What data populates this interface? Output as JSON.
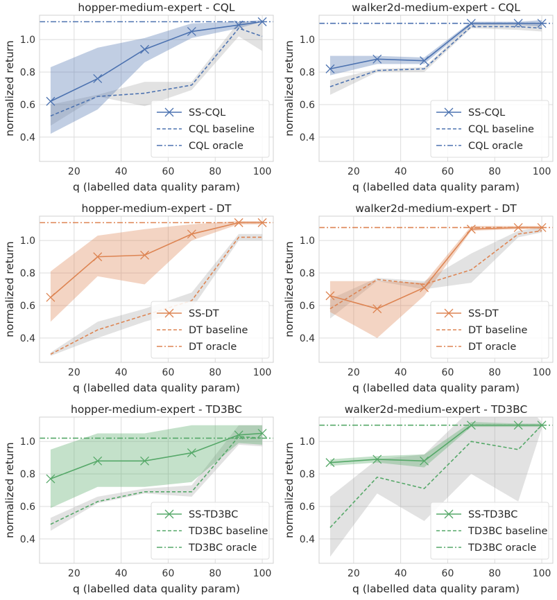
{
  "chart_data": [
    {
      "type": "line",
      "title": "hopper-medium-expert - CQL",
      "xlabel": "q (labelled data quality param)",
      "ylabel": "normalized return",
      "xlim": [
        5.3,
        104.7
      ],
      "ylim": [
        0.25,
        1.15
      ],
      "x": [
        10,
        30,
        50,
        70,
        90,
        100
      ],
      "xticks": [
        20,
        40,
        60,
        80,
        100
      ],
      "yticks": [
        0.4,
        0.6,
        0.8,
        1.0
      ],
      "grid": true,
      "legend": "lower-right",
      "color": "#4c72b0",
      "series": [
        {
          "name": "SS-CQL",
          "style": "solid-x",
          "values": [
            0.62,
            0.76,
            0.94,
            1.05,
            1.09,
            1.11
          ],
          "band_low": [
            0.42,
            0.57,
            0.86,
            1.01,
            1.07,
            1.11
          ],
          "band_high": [
            0.83,
            0.95,
            1.01,
            1.1,
            1.11,
            1.12
          ]
        },
        {
          "name": "CQL baseline",
          "style": "dashed",
          "values": [
            0.53,
            0.65,
            0.67,
            0.72,
            1.07,
            1.02
          ],
          "band_low": [
            0.47,
            0.65,
            0.59,
            0.69,
            1.02,
            0.93
          ],
          "band_high": [
            0.6,
            0.66,
            0.74,
            0.74,
            1.11,
            1.1
          ]
        },
        {
          "name": "CQL oracle",
          "style": "dashdot",
          "constant": 1.11
        }
      ]
    },
    {
      "type": "line",
      "title": "walker2d-medium-expert - CQL",
      "xlabel": "q (labelled data quality param)",
      "ylabel": "normalized return",
      "xlim": [
        5.3,
        104.7
      ],
      "ylim": [
        0.25,
        1.15
      ],
      "x": [
        10,
        30,
        50,
        70,
        90,
        100
      ],
      "xticks": [
        20,
        40,
        60,
        80,
        100
      ],
      "yticks": [
        0.4,
        0.6,
        0.8,
        1.0
      ],
      "grid": true,
      "legend": "lower-right",
      "color": "#4c72b0",
      "series": [
        {
          "name": "SS-CQL",
          "style": "solid-x",
          "values": [
            0.82,
            0.88,
            0.87,
            1.1,
            1.1,
            1.1
          ],
          "band_low": [
            0.78,
            0.85,
            0.85,
            1.09,
            1.09,
            1.08
          ],
          "band_high": [
            0.9,
            0.9,
            0.89,
            1.11,
            1.11,
            1.12
          ]
        },
        {
          "name": "CQL baseline",
          "style": "dashed",
          "values": [
            0.71,
            0.81,
            0.82,
            1.08,
            1.08,
            1.07
          ],
          "band_low": [
            0.66,
            0.8,
            0.8,
            1.07,
            1.06,
            1.05
          ],
          "band_high": [
            0.75,
            0.82,
            0.83,
            1.1,
            1.1,
            1.1
          ]
        },
        {
          "name": "CQL oracle",
          "style": "dashdot",
          "constant": 1.1
        }
      ]
    },
    {
      "type": "line",
      "title": "hopper-medium-expert - DT",
      "xlabel": "q (labelled data quality param)",
      "ylabel": "normalized return",
      "xlim": [
        5.3,
        104.7
      ],
      "ylim": [
        0.25,
        1.15
      ],
      "x": [
        10,
        30,
        50,
        70,
        90,
        100
      ],
      "xticks": [
        20,
        40,
        60,
        80,
        100
      ],
      "yticks": [
        0.4,
        0.6,
        0.8,
        1.0
      ],
      "grid": true,
      "legend": "lower-right",
      "color": "#dd8452",
      "series": [
        {
          "name": "SS-DT",
          "style": "solid-x",
          "values": [
            0.65,
            0.9,
            0.91,
            1.04,
            1.11,
            1.11
          ],
          "band_low": [
            0.5,
            0.78,
            0.73,
            1.0,
            1.1,
            1.1
          ],
          "band_high": [
            0.81,
            1.03,
            1.07,
            1.1,
            1.12,
            1.12
          ]
        },
        {
          "name": "DT baseline",
          "style": "dashed",
          "values": [
            0.3,
            0.45,
            0.54,
            0.63,
            1.02,
            1.02
          ],
          "band_low": [
            0.29,
            0.4,
            0.5,
            0.58,
            1.0,
            1.0
          ],
          "band_high": [
            0.31,
            0.5,
            0.58,
            0.68,
            1.04,
            1.04
          ]
        },
        {
          "name": "DT oracle",
          "style": "dashdot",
          "constant": 1.11
        }
      ]
    },
    {
      "type": "line",
      "title": "walker2d-medium-expert - DT",
      "xlabel": "q (labelled data quality param)",
      "ylabel": "normalized return",
      "xlim": [
        5.3,
        104.7
      ],
      "ylim": [
        0.25,
        1.15
      ],
      "x": [
        10,
        30,
        50,
        70,
        90,
        100
      ],
      "xticks": [
        20,
        40,
        60,
        80,
        100
      ],
      "yticks": [
        0.4,
        0.6,
        0.8,
        1.0
      ],
      "grid": true,
      "legend": "lower-right",
      "color": "#dd8452",
      "series": [
        {
          "name": "SS-DT",
          "style": "solid-x",
          "values": [
            0.66,
            0.58,
            0.71,
            1.07,
            1.08,
            1.08
          ],
          "band_low": [
            0.56,
            0.4,
            0.66,
            1.06,
            1.07,
            1.07
          ],
          "band_high": [
            0.75,
            0.75,
            0.74,
            1.09,
            1.09,
            1.09
          ]
        },
        {
          "name": "DT baseline",
          "style": "dashed",
          "values": [
            0.58,
            0.76,
            0.73,
            0.82,
            1.04,
            1.06
          ],
          "band_low": [
            0.52,
            0.75,
            0.7,
            0.74,
            1.02,
            1.05
          ],
          "band_high": [
            0.64,
            0.77,
            0.75,
            0.92,
            1.06,
            1.08
          ]
        },
        {
          "name": "DT oracle",
          "style": "dashdot",
          "constant": 1.08
        }
      ]
    },
    {
      "type": "line",
      "title": "hopper-medium-expert - TD3BC",
      "xlabel": "q (labelled data quality param)",
      "ylabel": "normalized return",
      "xlim": [
        5.3,
        104.7
      ],
      "ylim": [
        0.25,
        1.15
      ],
      "x": [
        10,
        30,
        50,
        70,
        90,
        100
      ],
      "xticks": [
        20,
        40,
        60,
        80,
        100
      ],
      "yticks": [
        0.4,
        0.6,
        0.8,
        1.0
      ],
      "grid": true,
      "legend": "lower-right",
      "color": "#55a868",
      "series": [
        {
          "name": "SS-TD3BC",
          "style": "solid-x",
          "values": [
            0.77,
            0.88,
            0.88,
            0.93,
            1.04,
            1.05
          ],
          "band_low": [
            0.59,
            0.72,
            0.72,
            0.75,
            0.99,
            0.98
          ],
          "band_high": [
            0.95,
            1.05,
            1.05,
            1.1,
            1.1,
            1.1
          ]
        },
        {
          "name": "TD3BC baseline",
          "style": "dashed",
          "values": [
            0.49,
            0.63,
            0.69,
            0.69,
            1.03,
            1.02
          ],
          "band_low": [
            0.45,
            0.62,
            0.68,
            0.66,
            0.98,
            0.97
          ],
          "band_high": [
            0.53,
            0.66,
            0.71,
            0.73,
            1.1,
            1.1
          ]
        },
        {
          "name": "TD3BC oracle",
          "style": "dashdot",
          "constant": 1.02
        }
      ]
    },
    {
      "type": "line",
      "title": "walker2d-medium-expert - TD3BC",
      "xlabel": "q (labelled data quality param)",
      "ylabel": "normalized return",
      "xlim": [
        5.3,
        104.7
      ],
      "ylim": [
        0.25,
        1.15
      ],
      "x": [
        10,
        30,
        50,
        70,
        90,
        100
      ],
      "xticks": [
        20,
        40,
        60,
        80,
        100
      ],
      "yticks": [
        0.4,
        0.6,
        0.8,
        1.0
      ],
      "grid": true,
      "legend": "lower-right",
      "color": "#55a868",
      "series": [
        {
          "name": "SS-TD3BC",
          "style": "solid-x",
          "values": [
            0.87,
            0.89,
            0.88,
            1.1,
            1.1,
            1.1
          ],
          "band_low": [
            0.85,
            0.87,
            0.84,
            1.09,
            1.09,
            1.09
          ],
          "band_high": [
            0.89,
            0.91,
            0.92,
            1.12,
            1.11,
            1.11
          ]
        },
        {
          "name": "TD3BC baseline",
          "style": "dashed",
          "values": [
            0.47,
            0.78,
            0.71,
            1.0,
            0.95,
            1.1
          ],
          "band_low": [
            0.29,
            0.68,
            0.51,
            0.8,
            0.63,
            1.08
          ],
          "band_high": [
            0.66,
            0.89,
            0.92,
            1.2,
            1.27,
            1.12
          ]
        },
        {
          "name": "TD3BC oracle",
          "style": "dashdot",
          "constant": 1.1
        }
      ]
    }
  ]
}
